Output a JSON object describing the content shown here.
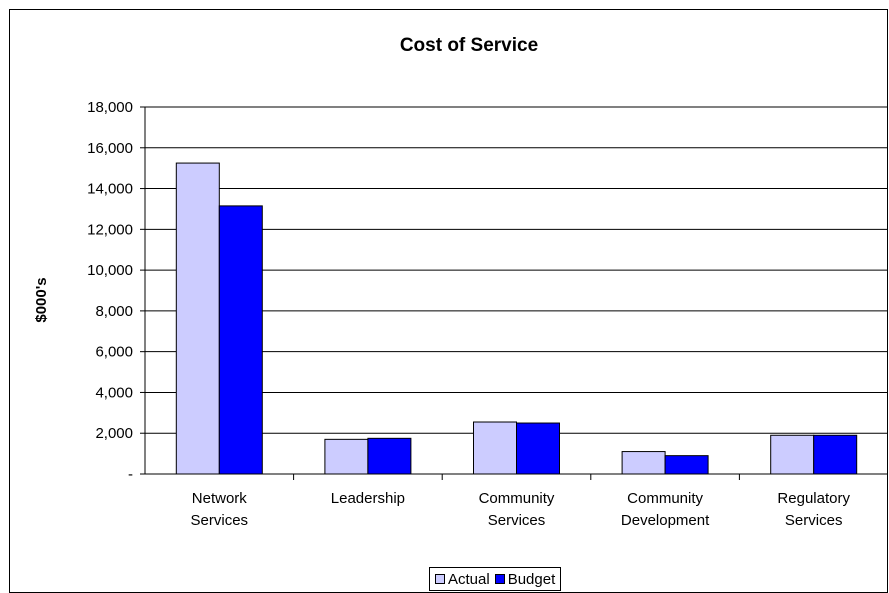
{
  "chart_data": {
    "type": "bar",
    "title": "Cost of Service",
    "xlabel": "",
    "ylabel": "$000's",
    "ylim": [
      0,
      18000
    ],
    "yticks": [
      0,
      2000,
      4000,
      6000,
      8000,
      10000,
      12000,
      14000,
      16000,
      18000
    ],
    "ytick_labels": [
      "-",
      "2,000",
      "4,000",
      "6,000",
      "8,000",
      "10,000",
      "12,000",
      "14,000",
      "16,000",
      "18,000"
    ],
    "grid": true,
    "legend_position": "bottom",
    "categories": [
      [
        "Network",
        "Services"
      ],
      [
        "Leadership"
      ],
      [
        "Community",
        "Services"
      ],
      [
        "Community",
        "Development"
      ],
      [
        "Regulatory",
        "Services"
      ]
    ],
    "series": [
      {
        "name": "Actual",
        "color": "#ccccff",
        "values": [
          15250,
          1700,
          2550,
          1100,
          1900
        ]
      },
      {
        "name": "Budget",
        "color": "#0000ff",
        "values": [
          13150,
          1750,
          2500,
          900,
          1900
        ]
      }
    ]
  }
}
